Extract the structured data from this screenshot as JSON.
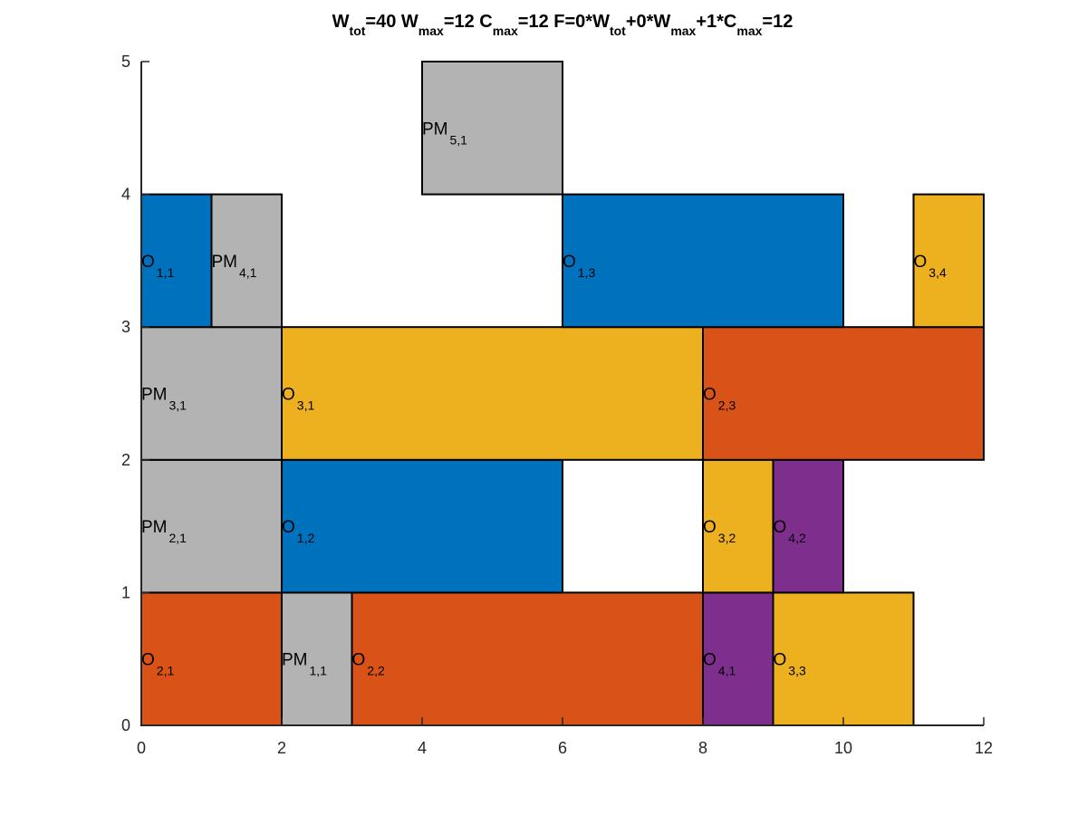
{
  "chart_data": {
    "type": "gantt",
    "title_parts": [
      {
        "text": "W"
      },
      {
        "text": "tot",
        "sub": true
      },
      {
        "text": "=40  W"
      },
      {
        "text": "max",
        "sub": true
      },
      {
        "text": "=12  C"
      },
      {
        "text": "max",
        "sub": true
      },
      {
        "text": "=12 F=0*W"
      },
      {
        "text": "tot",
        "sub": true
      },
      {
        "text": "+0*W"
      },
      {
        "text": "max",
        "sub": true
      },
      {
        "text": "+1*C"
      },
      {
        "text": "max",
        "sub": true
      },
      {
        "text": "=12"
      }
    ],
    "xlim": [
      0,
      12
    ],
    "ylim": [
      0,
      5
    ],
    "xticks": [
      0,
      2,
      4,
      6,
      8,
      10,
      12
    ],
    "yticks": [
      0,
      1,
      2,
      3,
      4,
      5
    ],
    "colors": {
      "job1": "#0072BD",
      "job2": "#D95319",
      "job3": "#EDB120",
      "job4": "#7E2F8E",
      "maintenance": "#B3B3B3"
    },
    "bars": [
      {
        "label": "O",
        "sub": "2,1",
        "machine": 1,
        "start": 0,
        "end": 2,
        "color": "#D95319"
      },
      {
        "label": "PM",
        "sub": "1,1",
        "machine": 1,
        "start": 2,
        "end": 3,
        "color": "#B3B3B3"
      },
      {
        "label": "O",
        "sub": "2,2",
        "machine": 1,
        "start": 3,
        "end": 8,
        "color": "#D95319"
      },
      {
        "label": "O",
        "sub": "4,1",
        "machine": 1,
        "start": 8,
        "end": 9,
        "color": "#7E2F8E"
      },
      {
        "label": "O",
        "sub": "3,3",
        "machine": 1,
        "start": 9,
        "end": 11,
        "color": "#EDB120"
      },
      {
        "label": "PM",
        "sub": "2,1",
        "machine": 2,
        "start": 0,
        "end": 2,
        "color": "#B3B3B3"
      },
      {
        "label": "O",
        "sub": "1,2",
        "machine": 2,
        "start": 2,
        "end": 6,
        "color": "#0072BD"
      },
      {
        "label": "O",
        "sub": "3,2",
        "machine": 2,
        "start": 8,
        "end": 9,
        "color": "#EDB120"
      },
      {
        "label": "O",
        "sub": "4,2",
        "machine": 2,
        "start": 9,
        "end": 10,
        "color": "#7E2F8E"
      },
      {
        "label": "PM",
        "sub": "3,1",
        "machine": 3,
        "start": 0,
        "end": 2,
        "color": "#B3B3B3"
      },
      {
        "label": "O",
        "sub": "3,1",
        "machine": 3,
        "start": 2,
        "end": 8,
        "color": "#EDB120"
      },
      {
        "label": "O",
        "sub": "2,3",
        "machine": 3,
        "start": 8,
        "end": 12,
        "color": "#D95319"
      },
      {
        "label": "O",
        "sub": "1,1",
        "machine": 4,
        "start": 0,
        "end": 1,
        "color": "#0072BD"
      },
      {
        "label": "PM",
        "sub": "4,1",
        "machine": 4,
        "start": 1,
        "end": 2,
        "color": "#B3B3B3"
      },
      {
        "label": "O",
        "sub": "1,3",
        "machine": 4,
        "start": 6,
        "end": 10,
        "color": "#0072BD"
      },
      {
        "label": "O",
        "sub": "3,4",
        "machine": 4,
        "start": 11,
        "end": 12,
        "color": "#EDB120"
      },
      {
        "label": "PM",
        "sub": "5,1",
        "machine": 5,
        "start": 4,
        "end": 6,
        "color": "#B3B3B3"
      }
    ]
  }
}
